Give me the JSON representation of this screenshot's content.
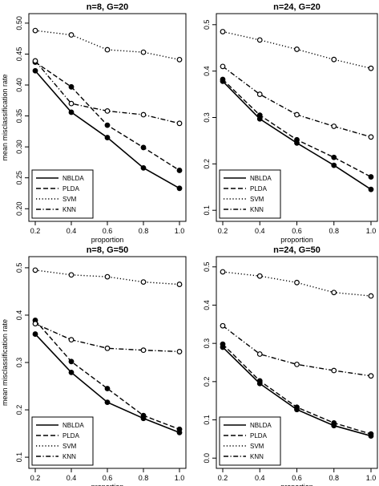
{
  "chart_data": [
    {
      "type": "line",
      "title": "n=8, G=20",
      "xlabel": "proportion",
      "ylabel": "mean misclassification rate",
      "x": [
        0.2,
        0.4,
        0.6,
        0.8,
        1.0
      ],
      "xlim": [
        0.2,
        1.0
      ],
      "ylim": [
        0.19,
        0.505
      ],
      "yticks": [
        0.2,
        0.25,
        0.3,
        0.35,
        0.4,
        0.45,
        0.5
      ],
      "ytick_labels": [
        "0.20",
        "0.25",
        "0.30",
        "0.35",
        "0.40",
        "0.45",
        "0.50"
      ],
      "legend": "bottom-left",
      "grid": false,
      "series": [
        {
          "name": "NBLDA",
          "style": "solid",
          "marker": "filled",
          "values": [
            0.423,
            0.356,
            0.315,
            0.266,
            0.233
          ]
        },
        {
          "name": "PLDA",
          "style": "dashed",
          "marker": "filled",
          "values": [
            0.437,
            0.397,
            0.335,
            0.299,
            0.262
          ]
        },
        {
          "name": "SVM",
          "style": "dotted",
          "marker": "open",
          "values": [
            0.488,
            0.481,
            0.457,
            0.453,
            0.441
          ]
        },
        {
          "name": "KNN",
          "style": "dashdot",
          "marker": "open",
          "values": [
            0.439,
            0.37,
            0.358,
            0.352,
            0.338
          ]
        }
      ]
    },
    {
      "type": "line",
      "title": "n=24, G=20",
      "xlabel": "proportion",
      "ylabel": "",
      "x": [
        0.2,
        0.4,
        0.6,
        0.8,
        1.0
      ],
      "xlim": [
        0.2,
        1.0
      ],
      "ylim": [
        0.09,
        0.51
      ],
      "yticks": [
        0.1,
        0.2,
        0.3,
        0.4,
        0.5
      ],
      "ytick_labels": [
        "0.1",
        "0.2",
        "0.3",
        "0.4",
        "0.5"
      ],
      "legend": "bottom-left",
      "grid": false,
      "series": [
        {
          "name": "NBLDA",
          "style": "solid",
          "marker": "filled",
          "values": [
            0.378,
            0.297,
            0.245,
            0.197,
            0.145
          ]
        },
        {
          "name": "PLDA",
          "style": "dashed",
          "marker": "filled",
          "values": [
            0.382,
            0.305,
            0.252,
            0.214,
            0.172
          ]
        },
        {
          "name": "SVM",
          "style": "dotted",
          "marker": "open",
          "values": [
            0.485,
            0.467,
            0.447,
            0.425,
            0.406
          ]
        },
        {
          "name": "KNN",
          "style": "dashdot",
          "marker": "open",
          "values": [
            0.41,
            0.35,
            0.306,
            0.281,
            0.258
          ]
        }
      ]
    },
    {
      "type": "line",
      "title": "n=8, G=50",
      "xlabel": "proportion",
      "ylabel": "mean misclassification rate",
      "x": [
        0.2,
        0.4,
        0.6,
        0.8,
        1.0
      ],
      "xlim": [
        0.2,
        1.0
      ],
      "ylim": [
        0.09,
        0.51
      ],
      "yticks": [
        0.1,
        0.2,
        0.3,
        0.4,
        0.5
      ],
      "ytick_labels": [
        "0.1",
        "0.2",
        "0.3",
        "0.4",
        "0.5"
      ],
      "legend": "bottom-left",
      "grid": false,
      "series": [
        {
          "name": "NBLDA",
          "style": "solid",
          "marker": "filled",
          "values": [
            0.36,
            0.279,
            0.216,
            0.182,
            0.152
          ]
        },
        {
          "name": "PLDA",
          "style": "dashed",
          "marker": "filled",
          "values": [
            0.389,
            0.302,
            0.245,
            0.188,
            0.159
          ]
        },
        {
          "name": "SVM",
          "style": "dotted",
          "marker": "open",
          "values": [
            0.495,
            0.485,
            0.481,
            0.47,
            0.465
          ]
        },
        {
          "name": "KNN",
          "style": "dashdot",
          "marker": "open",
          "values": [
            0.382,
            0.348,
            0.33,
            0.326,
            0.323
          ]
        }
      ]
    },
    {
      "type": "line",
      "title": "n=24, G=50",
      "xlabel": "proportion",
      "ylabel": "",
      "x": [
        0.2,
        0.4,
        0.6,
        0.8,
        1.0
      ],
      "xlim": [
        0.2,
        1.0
      ],
      "ylim": [
        -0.01,
        0.51
      ],
      "yticks": [
        0.0,
        0.1,
        0.2,
        0.3,
        0.4,
        0.5
      ],
      "ytick_labels": [
        "0.0",
        "0.1",
        "0.2",
        "0.3",
        "0.4",
        "0.5"
      ],
      "legend": "bottom-left",
      "grid": false,
      "series": [
        {
          "name": "NBLDA",
          "style": "solid",
          "marker": "filled",
          "values": [
            0.29,
            0.195,
            0.127,
            0.085,
            0.058
          ]
        },
        {
          "name": "PLDA",
          "style": "dashed",
          "marker": "filled",
          "values": [
            0.298,
            0.202,
            0.133,
            0.092,
            0.063
          ]
        },
        {
          "name": "SVM",
          "style": "dotted",
          "marker": "open",
          "values": [
            0.487,
            0.476,
            0.459,
            0.433,
            0.424
          ]
        },
        {
          "name": "KNN",
          "style": "dashdot",
          "marker": "open",
          "values": [
            0.346,
            0.272,
            0.245,
            0.229,
            0.215
          ]
        }
      ]
    }
  ],
  "xticks": [
    0.2,
    0.4,
    0.6,
    0.8,
    1.0
  ],
  "xtick_labels": [
    "0.2",
    "0.4",
    "0.6",
    "0.8",
    "1.0"
  ],
  "colors": {
    "line": "#000000",
    "background": "#ffffff"
  }
}
